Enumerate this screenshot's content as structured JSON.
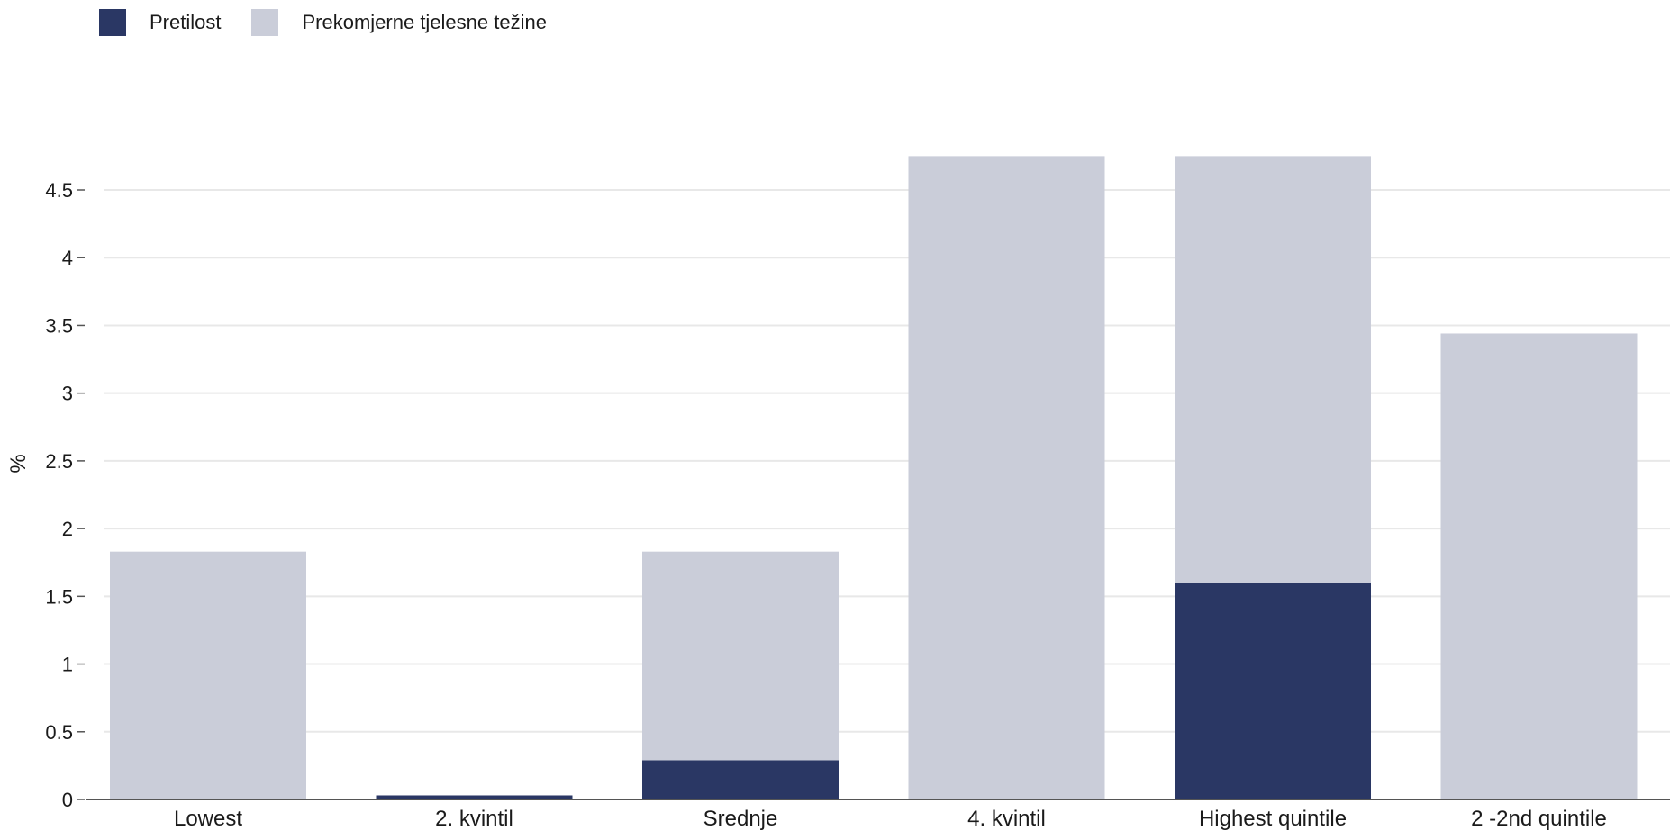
{
  "colors": {
    "obesity": "#2a3764",
    "overweight": "#cacdd9",
    "grid": "#e8e8e8",
    "axis": "#555555",
    "text": "#1a1a1a"
  },
  "legend": {
    "items": [
      {
        "label": "Pretilost",
        "color": "#2a3764"
      },
      {
        "label": "Prekomjerne tjelesne težine",
        "color": "#cacdd9"
      }
    ]
  },
  "chart_data": {
    "type": "bar",
    "stacked": true,
    "categories": [
      "Lowest",
      "2. kvintil",
      "Srednje",
      "4. kvintil",
      "Highest quintile",
      "2 -2nd quintile"
    ],
    "series": [
      {
        "name": "Pretilost",
        "values": [
          0,
          0.03,
          0.29,
          0,
          1.6,
          0
        ]
      },
      {
        "name": "Prekomjerne tjelesne težine",
        "values": [
          1.83,
          0,
          1.54,
          4.75,
          3.15,
          3.44
        ]
      }
    ],
    "ylabel": "%",
    "xlabel": "",
    "ylim": [
      0,
      4.75
    ],
    "yticks": [
      0,
      0.5,
      1,
      1.5,
      2,
      2.5,
      3,
      3.5,
      4,
      4.5
    ],
    "ytick_labels": [
      "0",
      "0.5",
      "1",
      "1.5",
      "2",
      "2.5",
      "3",
      "3.5",
      "4",
      "4.5"
    ],
    "grid": true,
    "legend_position": "top-left"
  }
}
